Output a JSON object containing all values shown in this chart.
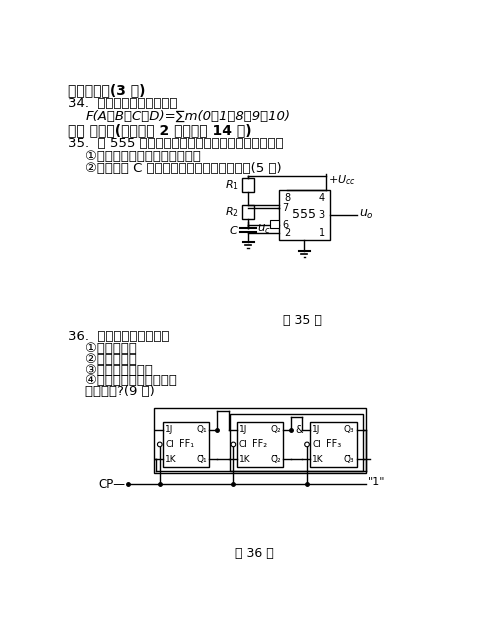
{
  "title_section4": "四、计算题(3 分)",
  "q34": "34.  用卡诺图化简逻辑函数",
  "q34_formula": "F(A，B，C，D)=∑m(0，1，8，9，10)",
  "title_section5": "五、 分析题(本大题共 2 小题，共 14 分)",
  "q35": "35.  由 555 集成定时器构成的多谐振荡器如图所示：",
  "q35_sub1": "    ①写出输出信号的周期表达式；",
  "q35_sub2": "    ②写出电容 C 两端的最大、最小峰值电压。(5 分)",
  "caption35": "题 35 图",
  "q36": "36.  时序电路如图所示：",
  "q36_sub1": "    ①写驱动方程",
  "q36_sub2": "    ②求状态方程",
  "q36_sub3": "    ③画出状态转换图",
  "q36_sub4": "    ④该电路是同步电路还是",
  "q36_sub5": "    异步电路?(9 分)",
  "caption36": "题 36 图",
  "bg_color": "#ffffff",
  "text_color": "#000000"
}
